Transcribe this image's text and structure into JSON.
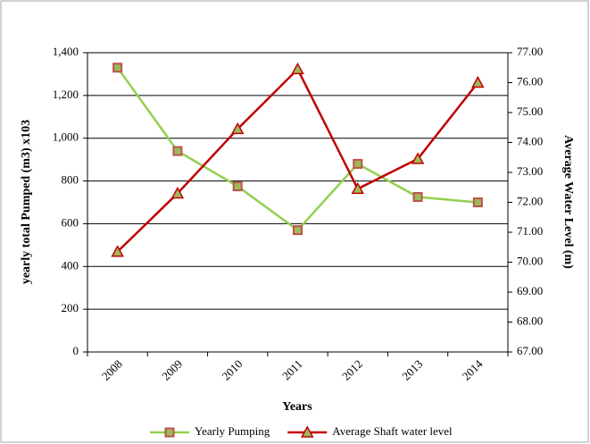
{
  "chart_data": {
    "type": "line",
    "x_label": "Years",
    "y_label": "yearly total Pumped (m3) x103",
    "y2_label": "Average  Water Level (m)",
    "categories": [
      "2008",
      "2009",
      "2010",
      "2011",
      "2012",
      "2013",
      "2014"
    ],
    "series": [
      {
        "name": "Yearly Pumping",
        "color": "#92d050",
        "marker": "square",
        "marker_fill": "#9bbb59",
        "marker_stroke": "#c0504d",
        "values": [
          1330,
          940,
          775,
          570,
          880,
          725,
          700
        ]
      },
      {
        "name": "Average  Shaft water level",
        "color": "#c00000",
        "marker": "triangle",
        "marker_fill": "#9bbb59",
        "marker_stroke": "#c00000",
        "axis": "y2",
        "values": [
          70.35,
          72.3,
          74.45,
          76.45,
          72.45,
          73.45,
          76.0
        ]
      }
    ],
    "ylim": [
      0,
      1400
    ],
    "yticks": [
      0,
      200,
      400,
      600,
      800,
      {
        "value": 1000,
        "label": "1,000"
      },
      {
        "value": 1200,
        "label": "1,200"
      },
      {
        "value": 1400,
        "label": "1,400"
      }
    ],
    "y2lim": [
      67,
      77
    ],
    "y2ticks": [
      {
        "value": 67,
        "label": "67.00"
      },
      {
        "value": 68,
        "label": "68.00"
      },
      {
        "value": 69,
        "label": "69.00"
      },
      {
        "value": 70,
        "label": "70.00"
      },
      {
        "value": 71,
        "label": "71.00"
      },
      {
        "value": 72,
        "label": "72.00"
      },
      {
        "value": 73,
        "label": "73.00"
      },
      {
        "value": 74,
        "label": "74.00"
      },
      {
        "value": 75,
        "label": "75.00"
      },
      {
        "value": 76,
        "label": "76.00"
      },
      {
        "value": 77,
        "label": "77.00"
      }
    ],
    "grid": true,
    "legend": "bottom"
  }
}
